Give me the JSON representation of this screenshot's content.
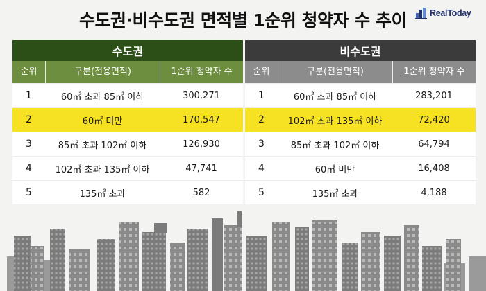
{
  "title": "수도권·비수도권 면적별 1순위 청약자 수 추이",
  "logo": {
    "text": "RealToday",
    "icon": "realtoday-logo-icon",
    "color": "#23306e"
  },
  "columns": {
    "rank": "순위",
    "category": "구분(전용면적)",
    "applicants": "1순위 청약자 수"
  },
  "colors": {
    "metro_header": "#2c4f17",
    "metro_colheader": "#6c8e3e",
    "nonmetro_header": "#3b3b3b",
    "nonmetro_colheader": "#8c8c8c",
    "highlight": "#f6e223",
    "skyline": "#8a8a8a"
  },
  "metro": {
    "title": "수도권",
    "rows": [
      {
        "rank": "1",
        "category": "60㎡ 초과 85㎡ 이하",
        "applicants": "300,271"
      },
      {
        "rank": "2",
        "category": "60㎡ 미만",
        "applicants": "170,547",
        "highlight": true
      },
      {
        "rank": "3",
        "category": "85㎡ 초과 102㎡ 이하",
        "applicants": "126,930"
      },
      {
        "rank": "4",
        "category": "102㎡ 초과 135㎡ 이하",
        "applicants": "47,741"
      },
      {
        "rank": "5",
        "category": "135㎡ 초과",
        "applicants": "582"
      }
    ]
  },
  "nonmetro": {
    "title": "비수도권",
    "rows": [
      {
        "rank": "1",
        "category": "60㎡ 초과 85㎡ 이하",
        "applicants": "283,201"
      },
      {
        "rank": "2",
        "category": "102㎡ 초과 135㎡ 이하",
        "applicants": "72,420",
        "highlight": true
      },
      {
        "rank": "3",
        "category": "85㎡ 초과 102㎡ 이하",
        "applicants": "64,794"
      },
      {
        "rank": "4",
        "category": "60㎡ 미만",
        "applicants": "16,408"
      },
      {
        "rank": "5",
        "category": "135㎡ 초과",
        "applicants": "4,188"
      }
    ]
  }
}
